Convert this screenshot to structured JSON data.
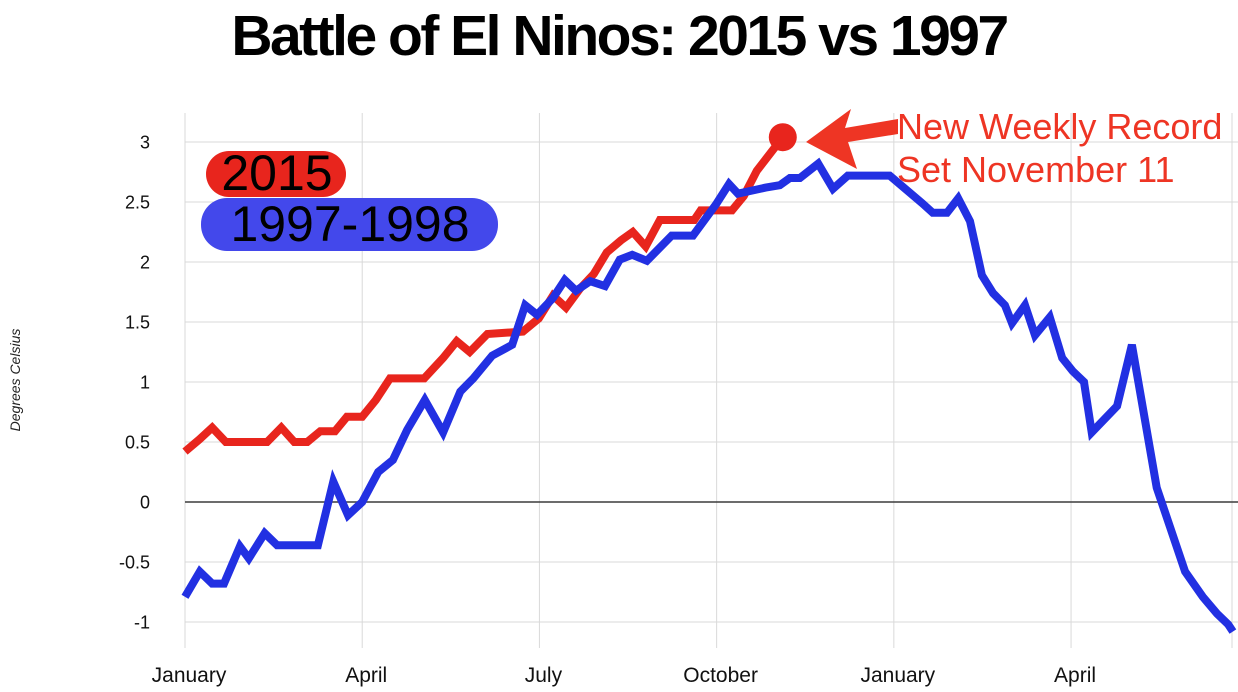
{
  "title": "Battle of El Ninos: 2015 vs 1997",
  "y_axis": {
    "label": "Degrees Celsius",
    "ticks": [
      {
        "label": "3",
        "value": 3
      },
      {
        "label": "2.5",
        "value": 2.5
      },
      {
        "label": "2",
        "value": 2
      },
      {
        "label": "1.5",
        "value": 1.5
      },
      {
        "label": "1",
        "value": 1
      },
      {
        "label": "0.5",
        "value": 0.5
      },
      {
        "label": "0",
        "value": 0
      },
      {
        "label": "-0.5",
        "value": -0.5
      },
      {
        "label": "-1",
        "value": -1
      }
    ]
  },
  "x_axis": {
    "labels": [
      "January",
      "April",
      "July",
      "October",
      "January",
      "April"
    ],
    "month_positions": [
      0,
      3,
      6,
      9,
      12,
      15
    ]
  },
  "legend": [
    {
      "label": "2015",
      "color": "#e8251d"
    },
    {
      "label": "1997-1998",
      "color": "#4348eb"
    }
  ],
  "annotation": {
    "line1": "New Weekly Record",
    "line2": "Set November 11",
    "color": "#ee3524"
  },
  "colors": {
    "grid": "#d9d9d9",
    "zero_line": "#3c3c3c",
    "tick_text": "#111111"
  },
  "chart_data": {
    "type": "line",
    "title": "Battle of El Ninos: 2015 vs 1997",
    "ylabel": "Degrees Celsius",
    "ylim": [
      -1,
      3
    ],
    "x_unit": "months_from_first_january_shown",
    "grid": true,
    "legend_position": "top-left",
    "series": [
      {
        "name": "2015",
        "color": "#e8251d",
        "points": [
          [
            0.0,
            0.42
          ],
          [
            0.24,
            0.52
          ],
          [
            0.46,
            0.62
          ],
          [
            0.69,
            0.5
          ],
          [
            1.39,
            0.5
          ],
          [
            1.63,
            0.62
          ],
          [
            1.85,
            0.5
          ],
          [
            2.07,
            0.5
          ],
          [
            2.29,
            0.59
          ],
          [
            2.54,
            0.59
          ],
          [
            2.74,
            0.71
          ],
          [
            3.0,
            0.71
          ],
          [
            3.23,
            0.85
          ],
          [
            3.47,
            1.03
          ],
          [
            4.05,
            1.03
          ],
          [
            4.37,
            1.2
          ],
          [
            4.6,
            1.34
          ],
          [
            4.82,
            1.25
          ],
          [
            5.12,
            1.4
          ],
          [
            5.72,
            1.42
          ],
          [
            5.99,
            1.53
          ],
          [
            6.23,
            1.72
          ],
          [
            6.45,
            1.62
          ],
          [
            6.69,
            1.78
          ],
          [
            6.92,
            1.9
          ],
          [
            7.14,
            2.08
          ],
          [
            7.38,
            2.18
          ],
          [
            7.58,
            2.25
          ],
          [
            7.8,
            2.13
          ],
          [
            8.04,
            2.35
          ],
          [
            8.62,
            2.35
          ],
          [
            8.73,
            2.43
          ],
          [
            9.26,
            2.43
          ],
          [
            9.46,
            2.55
          ],
          [
            9.68,
            2.76
          ],
          [
            10.12,
            3.04
          ]
        ]
      },
      {
        "name": "1997-1998",
        "color": "#2230e2",
        "points": [
          [
            0.0,
            -0.79
          ],
          [
            0.25,
            -0.58
          ],
          [
            0.46,
            -0.68
          ],
          [
            0.66,
            -0.68
          ],
          [
            0.93,
            -0.37
          ],
          [
            1.08,
            -0.47
          ],
          [
            1.35,
            -0.26
          ],
          [
            1.56,
            -0.36
          ],
          [
            2.25,
            -0.36
          ],
          [
            2.51,
            0.17
          ],
          [
            2.76,
            -0.11
          ],
          [
            3.0,
            0.0
          ],
          [
            3.27,
            0.25
          ],
          [
            3.52,
            0.35
          ],
          [
            3.76,
            0.6
          ],
          [
            4.06,
            0.85
          ],
          [
            4.37,
            0.58
          ],
          [
            4.66,
            0.92
          ],
          [
            4.88,
            1.03
          ],
          [
            5.2,
            1.22
          ],
          [
            5.54,
            1.31
          ],
          [
            5.76,
            1.64
          ],
          [
            5.96,
            1.56
          ],
          [
            6.23,
            1.7
          ],
          [
            6.43,
            1.85
          ],
          [
            6.62,
            1.76
          ],
          [
            6.86,
            1.84
          ],
          [
            7.11,
            1.8
          ],
          [
            7.36,
            2.02
          ],
          [
            7.57,
            2.06
          ],
          [
            7.82,
            2.01
          ],
          [
            8.24,
            2.22
          ],
          [
            8.6,
            2.22
          ],
          [
            8.99,
            2.48
          ],
          [
            9.21,
            2.65
          ],
          [
            9.36,
            2.57
          ],
          [
            9.83,
            2.62
          ],
          [
            10.07,
            2.64
          ],
          [
            10.24,
            2.7
          ],
          [
            10.41,
            2.7
          ],
          [
            10.72,
            2.82
          ],
          [
            10.97,
            2.61
          ],
          [
            11.22,
            2.72
          ],
          [
            11.93,
            2.72
          ],
          [
            12.48,
            2.49
          ],
          [
            12.66,
            2.41
          ],
          [
            12.9,
            2.41
          ],
          [
            13.09,
            2.53
          ],
          [
            13.29,
            2.34
          ],
          [
            13.49,
            1.89
          ],
          [
            13.68,
            1.74
          ],
          [
            13.88,
            1.64
          ],
          [
            14.0,
            1.49
          ],
          [
            14.22,
            1.64
          ],
          [
            14.39,
            1.39
          ],
          [
            14.64,
            1.54
          ],
          [
            14.85,
            1.2
          ],
          [
            15.03,
            1.09
          ],
          [
            15.22,
            1.0
          ],
          [
            15.35,
            0.58
          ],
          [
            15.78,
            0.8
          ],
          [
            16.03,
            1.31
          ],
          [
            16.45,
            0.12
          ],
          [
            16.67,
            -0.2
          ],
          [
            16.93,
            -0.58
          ],
          [
            17.23,
            -0.79
          ],
          [
            17.47,
            -0.93
          ],
          [
            17.66,
            -1.02
          ],
          [
            17.74,
            -1.08
          ]
        ]
      }
    ],
    "record_point": {
      "series": "2015",
      "month": 10.12,
      "value": 3.04,
      "label": "New Weekly Record Set November 11"
    }
  }
}
